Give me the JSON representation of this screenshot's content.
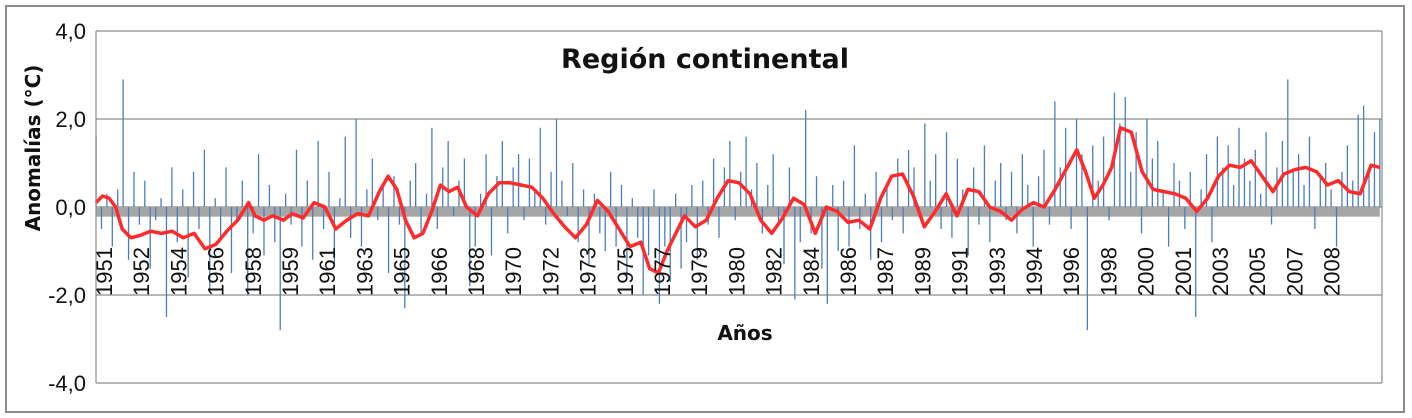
{
  "chart_data": {
    "type": "bar",
    "title": "Región continental",
    "xlabel": "Años",
    "ylabel": "Anomalías (°C)",
    "ylim": [
      -4.0,
      4.0
    ],
    "yticks": [
      "4,0",
      "2,0",
      "0,0",
      "-2,0",
      "-4,0"
    ],
    "xticks": [
      "1951",
      "1952",
      "1954",
      "1956",
      "1958",
      "1959",
      "1961",
      "1963",
      "1965",
      "1966",
      "1968",
      "1970",
      "1972",
      "1973",
      "1975",
      "1977",
      "1979",
      "1980",
      "1982",
      "1984",
      "1986",
      "1987",
      "1989",
      "1991",
      "1993",
      "1994",
      "1996",
      "1998",
      "2000",
      "2001",
      "2003",
      "2005",
      "2007",
      "2008"
    ],
    "grid": true,
    "colors": {
      "bars": "#4a7ebb",
      "zero_band": "#a6a6a6",
      "moving_average": "#ff2a2a"
    },
    "series": [
      {
        "type": "bar",
        "x_start": 1951.0,
        "x_end": 2009.9,
        "values": [
          1.6,
          -0.5,
          0.3,
          -0.9,
          0.4,
          2.9,
          -1.2,
          0.8,
          -0.4,
          0.6,
          -1.4,
          -0.3,
          0.2,
          -2.5,
          0.9,
          -0.8,
          0.4,
          -1.6,
          0.8,
          -0.5,
          1.3,
          -1.9,
          0.2,
          -0.7,
          0.9,
          -1.5,
          -0.3,
          0.6,
          -2.0,
          -0.6,
          1.2,
          -1.1,
          0.5,
          -0.8,
          -2.8,
          0.3,
          -0.4,
          1.3,
          -0.9,
          0.6,
          -1.2,
          1.5,
          -0.5,
          0.8,
          -1.3,
          0.2,
          1.6,
          -0.7,
          2.0,
          -0.9,
          0.4,
          1.1,
          -0.3,
          0.5,
          -1.5,
          0.7,
          -0.4,
          -2.3,
          0.6,
          1.0,
          -0.6,
          0.3,
          1.8,
          -0.5,
          0.9,
          1.5,
          -0.2,
          0.6,
          1.1,
          -1.8,
          -0.9,
          0.3,
          1.2,
          -1.1,
          0.7,
          1.5,
          -0.6,
          0.9,
          1.2,
          -0.3,
          1.1,
          0.4,
          1.8,
          -0.4,
          0.8,
          2.0,
          0.6,
          -0.2,
          1.0,
          -0.8,
          0.4,
          -1.3,
          0.3,
          -0.6,
          -1.0,
          0.8,
          -0.9,
          0.5,
          -1.6,
          0.2,
          -0.7,
          -2.0,
          -1.1,
          0.4,
          -2.2,
          -0.9,
          -1.7,
          0.3,
          -1.4,
          -0.8,
          0.5,
          -1.2,
          0.6,
          -0.4,
          1.1,
          -0.7,
          0.9,
          1.5,
          -0.3,
          0.8,
          1.6,
          0.4,
          1.0,
          -0.6,
          0.5,
          1.2,
          -0.4,
          -1.3,
          0.9,
          -2.1,
          -0.8,
          2.2,
          -0.6,
          0.7,
          -1.4,
          -2.2,
          0.5,
          -1.0,
          0.6,
          -0.9,
          1.4,
          -0.5,
          0.3,
          -1.2,
          0.8,
          -0.8,
          0.5,
          -0.3,
          1.1,
          -0.6,
          1.3,
          0.9,
          -0.2,
          1.9,
          0.6,
          1.2,
          -0.5,
          1.7,
          -0.7,
          1.1,
          0.4,
          -1.1,
          0.9,
          -0.4,
          1.4,
          -0.8,
          0.6,
          1.0,
          -0.3,
          0.8,
          -0.6,
          1.2,
          0.5,
          -0.9,
          0.7,
          1.3,
          -0.4,
          2.4,
          0.9,
          1.8,
          -0.5,
          2.0,
          1.2,
          -2.8,
          1.4,
          0.6,
          1.6,
          -0.3,
          2.6,
          1.9,
          2.5,
          0.8,
          1.7,
          -0.6,
          2.0,
          1.1,
          1.5,
          0.4,
          -0.9,
          1.0,
          0.6,
          -0.5,
          0.8,
          -2.5,
          0.4,
          1.2,
          -0.8,
          1.6,
          0.9,
          1.4,
          0.5,
          1.8,
          1.1,
          0.6,
          1.3,
          0.3,
          1.7,
          -0.4,
          0.9,
          1.5,
          2.9,
          0.8,
          1.2,
          0.5,
          1.6,
          -0.5,
          0.7,
          1.0,
          0.4,
          -0.9,
          0.8,
          1.4,
          0.6,
          2.1,
          2.3,
          0.9,
          1.7,
          2.0
        ]
      },
      {
        "type": "line",
        "name": "",
        "x": [
          1951.0,
          1951.3,
          1951.6,
          1951.9,
          1952.2,
          1952.6,
          1953.0,
          1953.5,
          1954.0,
          1954.5,
          1955.0,
          1955.5,
          1956.0,
          1956.5,
          1957.0,
          1957.5,
          1958.0,
          1958.3,
          1958.7,
          1959.1,
          1959.6,
          1960.0,
          1960.5,
          1961.0,
          1961.5,
          1962.0,
          1962.5,
          1963.0,
          1963.5,
          1964.0,
          1964.4,
          1964.8,
          1965.2,
          1965.6,
          1966.0,
          1966.4,
          1966.8,
          1967.2,
          1967.6,
          1968.0,
          1968.5,
          1969.0,
          1969.5,
          1970.0,
          1970.5,
          1971.0,
          1971.5,
          1972.0,
          1972.5,
          1973.0,
          1973.5,
          1974.0,
          1974.5,
          1975.0,
          1975.5,
          1976.0,
          1976.4,
          1976.8,
          1977.2,
          1977.6,
          1978.0,
          1978.5,
          1979.0,
          1979.5,
          1980.0,
          1980.5,
          1981.0,
          1981.5,
          1982.0,
          1982.5,
          1983.0,
          1983.5,
          1984.0,
          1984.5,
          1985.0,
          1985.5,
          1986.0,
          1986.5,
          1987.0,
          1987.5,
          1988.0,
          1988.5,
          1989.0,
          1989.5,
          1990.0,
          1990.5,
          1991.0,
          1991.5,
          1992.0,
          1992.5,
          1993.0,
          1993.5,
          1994.0,
          1994.5,
          1995.0,
          1995.5,
          1996.0,
          1996.4,
          1996.8,
          1997.2,
          1997.6,
          1998.0,
          1998.5,
          1999.0,
          1999.5,
          2000.0,
          2000.5,
          2001.0,
          2001.5,
          2002.0,
          2002.5,
          2003.0,
          2003.5,
          2004.0,
          2004.5,
          2005.0,
          2005.5,
          2006.0,
          2006.5,
          2007.0,
          2007.5,
          2008.0,
          2008.5,
          2009.0,
          2009.5,
          2009.9
        ],
        "values": [
          0.1,
          0.25,
          0.2,
          0.0,
          -0.5,
          -0.7,
          -0.65,
          -0.55,
          -0.6,
          -0.55,
          -0.7,
          -0.6,
          -0.95,
          -0.85,
          -0.55,
          -0.3,
          0.1,
          -0.2,
          -0.3,
          -0.2,
          -0.3,
          -0.15,
          -0.25,
          0.1,
          0.0,
          -0.5,
          -0.3,
          -0.15,
          -0.2,
          0.35,
          0.7,
          0.4,
          -0.3,
          -0.7,
          -0.6,
          -0.1,
          0.5,
          0.35,
          0.45,
          0.0,
          -0.2,
          0.3,
          0.55,
          0.55,
          0.5,
          0.45,
          0.2,
          -0.15,
          -0.45,
          -0.7,
          -0.4,
          0.15,
          -0.1,
          -0.5,
          -0.9,
          -0.8,
          -1.4,
          -1.5,
          -1.0,
          -0.6,
          -0.2,
          -0.45,
          -0.3,
          0.2,
          0.6,
          0.55,
          0.3,
          -0.3,
          -0.6,
          -0.25,
          0.2,
          0.05,
          -0.6,
          0.0,
          -0.1,
          -0.35,
          -0.3,
          -0.5,
          0.2,
          0.7,
          0.75,
          0.25,
          -0.45,
          -0.1,
          0.3,
          -0.2,
          0.4,
          0.35,
          0.0,
          -0.1,
          -0.3,
          -0.05,
          0.1,
          0.0,
          0.4,
          0.85,
          1.3,
          0.8,
          0.2,
          0.5,
          0.9,
          1.8,
          1.7,
          0.8,
          0.4,
          0.35,
          0.3,
          0.2,
          -0.1,
          0.2,
          0.7,
          0.95,
          0.9,
          1.05,
          0.7,
          0.35,
          0.75,
          0.85,
          0.9,
          0.8,
          0.5,
          0.6,
          0.35,
          0.3,
          0.95,
          0.9
        ]
      }
    ]
  }
}
